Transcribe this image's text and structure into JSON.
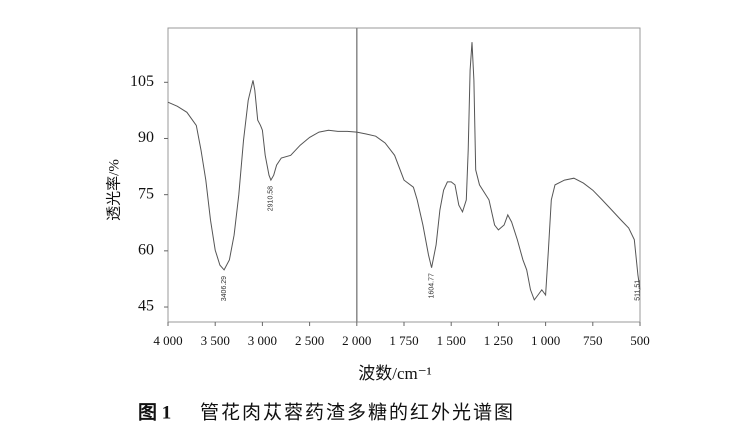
{
  "chart_data": {
    "type": "line",
    "ylabel": "透光率/%",
    "xlabel": "波数/cm⁻¹",
    "caption_number": "图 1",
    "caption": "管花肉苁蓉药渣多糖的红外光谱图",
    "color": "#555555",
    "xlim": [
      4000,
      500
    ],
    "x_scale_break": {
      "at": 2000,
      "factor": 2
    },
    "ylim": [
      41,
      119.5
    ],
    "yticks": [
      45,
      60,
      75,
      90,
      105
    ],
    "xticks": [
      {
        "value": 4000,
        "label": "4 000"
      },
      {
        "value": 3500,
        "label": "3 500"
      },
      {
        "value": 3000,
        "label": "3 000"
      },
      {
        "value": 2500,
        "label": "2 500"
      },
      {
        "value": 2000,
        "label": "2 000"
      },
      {
        "value": 1750,
        "label": "1 750"
      },
      {
        "value": 1500,
        "label": "1 500"
      },
      {
        "value": 1250,
        "label": "1 250"
      },
      {
        "value": 1000,
        "label": "1 000"
      },
      750,
      500
    ],
    "peaks": [
      3406.29,
      2910.58,
      1604.77,
      511.51
    ],
    "x": [
      4000,
      3900,
      3800,
      3700,
      3650,
      3600,
      3550,
      3500,
      3450,
      3406,
      3350,
      3300,
      3250,
      3200,
      3150,
      3100,
      3080,
      3050,
      3020,
      3000,
      2970,
      2930,
      2910,
      2880,
      2850,
      2800,
      2700,
      2600,
      2500,
      2400,
      2300,
      2200,
      2100,
      2000,
      1950,
      1900,
      1850,
      1800,
      1750,
      1700,
      1680,
      1650,
      1620,
      1604,
      1580,
      1560,
      1540,
      1520,
      1500,
      1480,
      1460,
      1440,
      1420,
      1410,
      1400,
      1390,
      1380,
      1370,
      1350,
      1300,
      1270,
      1250,
      1220,
      1200,
      1180,
      1150,
      1120,
      1100,
      1080,
      1060,
      1040,
      1020,
      1000,
      985,
      970,
      950,
      900,
      850,
      800,
      750,
      700,
      650,
      600,
      560,
      530,
      511,
      500
    ],
    "values": [
      99.7,
      98.6,
      97,
      93.5,
      86.9,
      78.9,
      68.2,
      60.2,
      56.2,
      54.9,
      57.6,
      64.2,
      75,
      89.5,
      100.2,
      105.5,
      102.9,
      94.9,
      93.5,
      92.2,
      85.5,
      80.2,
      78.9,
      80.2,
      82.9,
      84.8,
      85.5,
      88.2,
      90.3,
      91.7,
      92.2,
      91.9,
      91.9,
      91.7,
      91.2,
      90.6,
      88.8,
      85.5,
      78.9,
      77,
      73.6,
      66.9,
      58.9,
      55.5,
      61.6,
      70.9,
      76.2,
      78.4,
      78.4,
      77.6,
      72.2,
      70.4,
      73.6,
      86.9,
      108.2,
      115.7,
      105.5,
      81.6,
      77.6,
      73.6,
      66.9,
      65.6,
      66.9,
      69.6,
      67.7,
      63,
      57.6,
      54.9,
      49.6,
      46.9,
      48.2,
      49.6,
      48.2,
      60.2,
      73.6,
      77.6,
      78.9,
      79.4,
      78.1,
      76.2,
      73.6,
      70.9,
      68.2,
      66.1,
      63,
      53.6,
      49.6
    ]
  }
}
